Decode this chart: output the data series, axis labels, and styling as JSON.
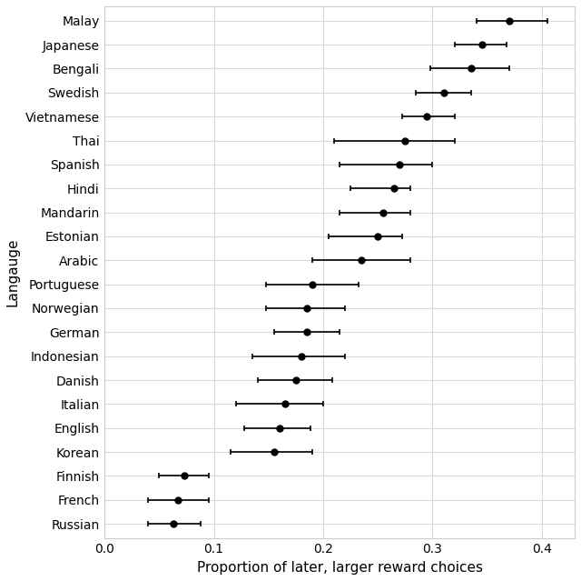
{
  "languages": [
    "Malay",
    "Japanese",
    "Bengali",
    "Swedish",
    "Vietnamese",
    "Thai",
    "Spanish",
    "Hindi",
    "Mandarin",
    "Estonian",
    "Arabic",
    "Portuguese",
    "Norwegian",
    "German",
    "Indonesian",
    "Danish",
    "Italian",
    "English",
    "Korean",
    "Finnish",
    "French",
    "Russian"
  ],
  "means": [
    0.37,
    0.345,
    0.335,
    0.31,
    0.295,
    0.275,
    0.27,
    0.265,
    0.255,
    0.25,
    0.235,
    0.19,
    0.185,
    0.185,
    0.18,
    0.175,
    0.165,
    0.16,
    0.155,
    0.073,
    0.067,
    0.063
  ],
  "ci_lower": [
    0.34,
    0.32,
    0.298,
    0.285,
    0.272,
    0.21,
    0.215,
    0.225,
    0.215,
    0.205,
    0.19,
    0.148,
    0.148,
    0.155,
    0.135,
    0.14,
    0.12,
    0.128,
    0.115,
    0.05,
    0.04,
    0.04
  ],
  "ci_upper": [
    0.405,
    0.368,
    0.37,
    0.335,
    0.32,
    0.32,
    0.3,
    0.28,
    0.28,
    0.272,
    0.28,
    0.232,
    0.22,
    0.215,
    0.22,
    0.208,
    0.2,
    0.188,
    0.19,
    0.095,
    0.095,
    0.088
  ],
  "xlabel": "Proportion of later, larger reward choices",
  "ylabel": "Langauge",
  "xlim": [
    0.0,
    0.43
  ],
  "xticks": [
    0.0,
    0.1,
    0.2,
    0.3,
    0.4
  ],
  "xtick_labels": [
    "0.0",
    "0.1",
    "0.2",
    "0.3",
    "0.4"
  ],
  "dot_color": "#000000",
  "line_color": "#000000",
  "grid_color": "#d9d9d9",
  "panel_bg_color": "#ffffff",
  "fig_bg_color": "#ffffff",
  "dot_size": 5,
  "linewidth": 1.2,
  "capsize": 2.5,
  "label_fontsize": 11,
  "tick_fontsize": 10,
  "spine_color": "#cccccc"
}
